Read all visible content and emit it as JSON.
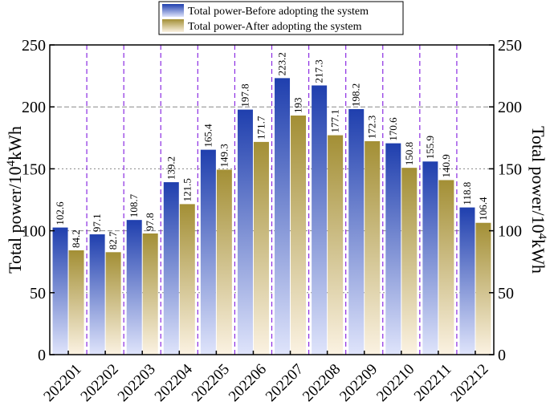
{
  "chart_data": {
    "type": "bar",
    "categories": [
      "202201",
      "202202",
      "202203",
      "202204",
      "202205",
      "202206",
      "202207",
      "202208",
      "202209",
      "202210",
      "202211",
      "202212"
    ],
    "series": [
      {
        "name": "Total power-Before adopting the system",
        "values": [
          102.6,
          97.1,
          108.7,
          139.2,
          165.4,
          197.8,
          223.2,
          217.3,
          198.2,
          170.6,
          155.9,
          118.8
        ],
        "color_top": "#1f3fae",
        "color_bottom": "#dfe4fb"
      },
      {
        "name": "Total power-After adopting the system",
        "values": [
          84.2,
          82.7,
          97.8,
          121.5,
          149.3,
          171.7,
          193,
          177.1,
          172.3,
          150.8,
          140.9,
          106.4
        ],
        "color_top": "#a38f35",
        "color_bottom": "#fbf2e2"
      }
    ],
    "data_labels": {
      "before": [
        "102.6",
        "97.1",
        "108.7",
        "139.2",
        "165.4",
        "197.8",
        "223.2",
        "217.3",
        "198.2",
        "170.6",
        "155.9",
        "118.8"
      ],
      "after": [
        "84.2",
        "82.7",
        "97.8",
        "121.5",
        "149.3",
        "171.7",
        "193",
        "177.1",
        "172.3",
        "150.8",
        "140.9",
        "106.4"
      ]
    },
    "title": "",
    "ylabel_left": {
      "base": "Total power/10",
      "sup": "4",
      "unit": "kWh"
    },
    "ylabel_right": {
      "base": "Total power/10",
      "sup": "4",
      "unit": "kWh"
    },
    "ylim": [
      0,
      250
    ],
    "yticks": [
      "0",
      "50",
      "100",
      "150",
      "200",
      "250"
    ],
    "legend_position": "top-center",
    "grid_color": "#888888",
    "separator_color": "#8a2be2"
  }
}
